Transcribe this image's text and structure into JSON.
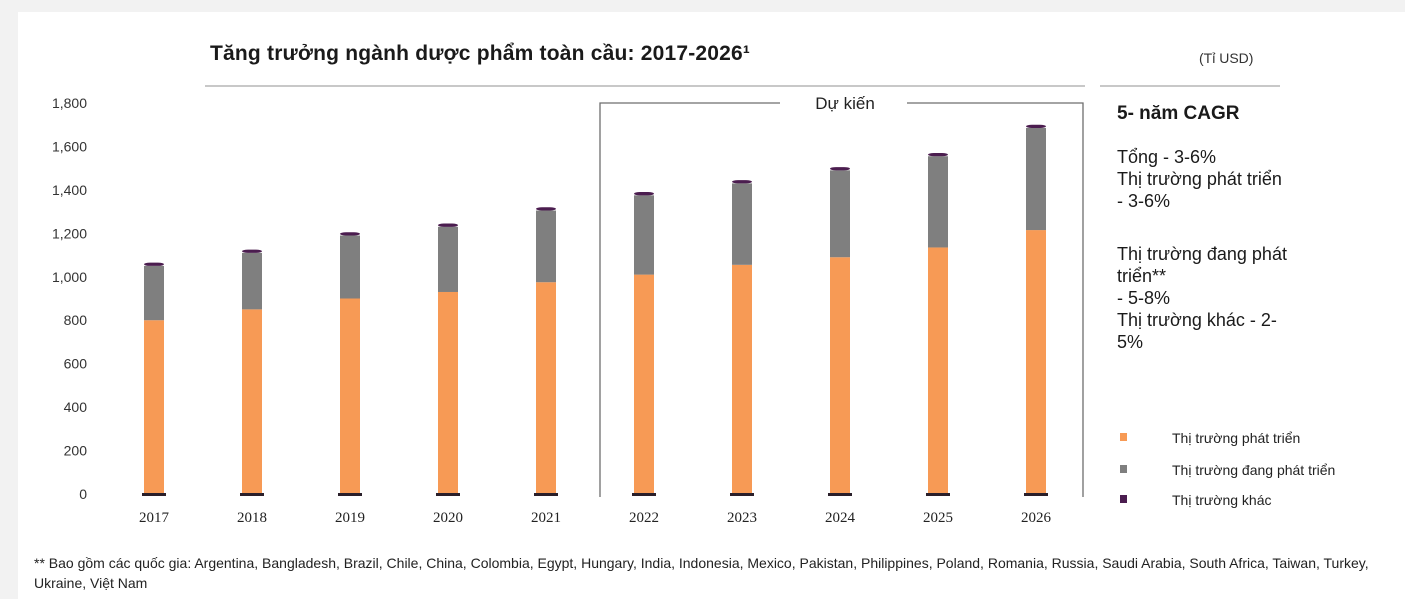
{
  "chart_data": {
    "type": "bar",
    "stacked": true,
    "title": "Tăng trưởng ngành dược phẩm toàn cầu: 2017-2026¹",
    "unit": "(Tỉ USD)",
    "categories": [
      "2017",
      "2018",
      "2019",
      "2020",
      "2021",
      "2022",
      "2023",
      "2024",
      "2025",
      "2026"
    ],
    "series": [
      {
        "name": "Thị trường phát triển",
        "color": "#f79a55",
        "values": [
          800,
          850,
          900,
          930,
          975,
          1010,
          1055,
          1090,
          1135,
          1215
        ]
      },
      {
        "name": "Thị trường đang phát triển",
        "color": "#7f7f7f",
        "values": [
          250,
          260,
          290,
          300,
          330,
          365,
          375,
          400,
          420,
          470
        ]
      },
      {
        "name": "Thị trường khác",
        "color": "#4b1d4f",
        "values": [
          15,
          15,
          15,
          15,
          15,
          15,
          15,
          15,
          15,
          15
        ]
      }
    ],
    "ylim": [
      0,
      1800
    ],
    "yticks": [
      "0",
      "200",
      "400",
      "600",
      "800",
      "1,000",
      "1,200",
      "1,400",
      "1,600",
      "1,800"
    ],
    "forecast_label": "Dự kiến",
    "forecast_start": "2022",
    "grid": false,
    "legend": "right"
  },
  "cagr": {
    "title": "5- năm CAGR",
    "block1": "Tổng - 3-6%\nThị trường phát triển\n- 3-6%",
    "block2": "Thị trường đang phát\ntriển**\n - 5-8%\nThị trường khác - 2-\n5%"
  },
  "footnote": "** Bao gồm các quốc gia: Argentina, Bangladesh, Brazil, Chile, China, Colombia, Egypt, Hungary, India, Indonesia, Mexico, Pakistan, Philippines, Poland, Romania, Russia, Saudi Arabia, South Africa, Taiwan, Turkey, Ukraine, Việt Nam"
}
